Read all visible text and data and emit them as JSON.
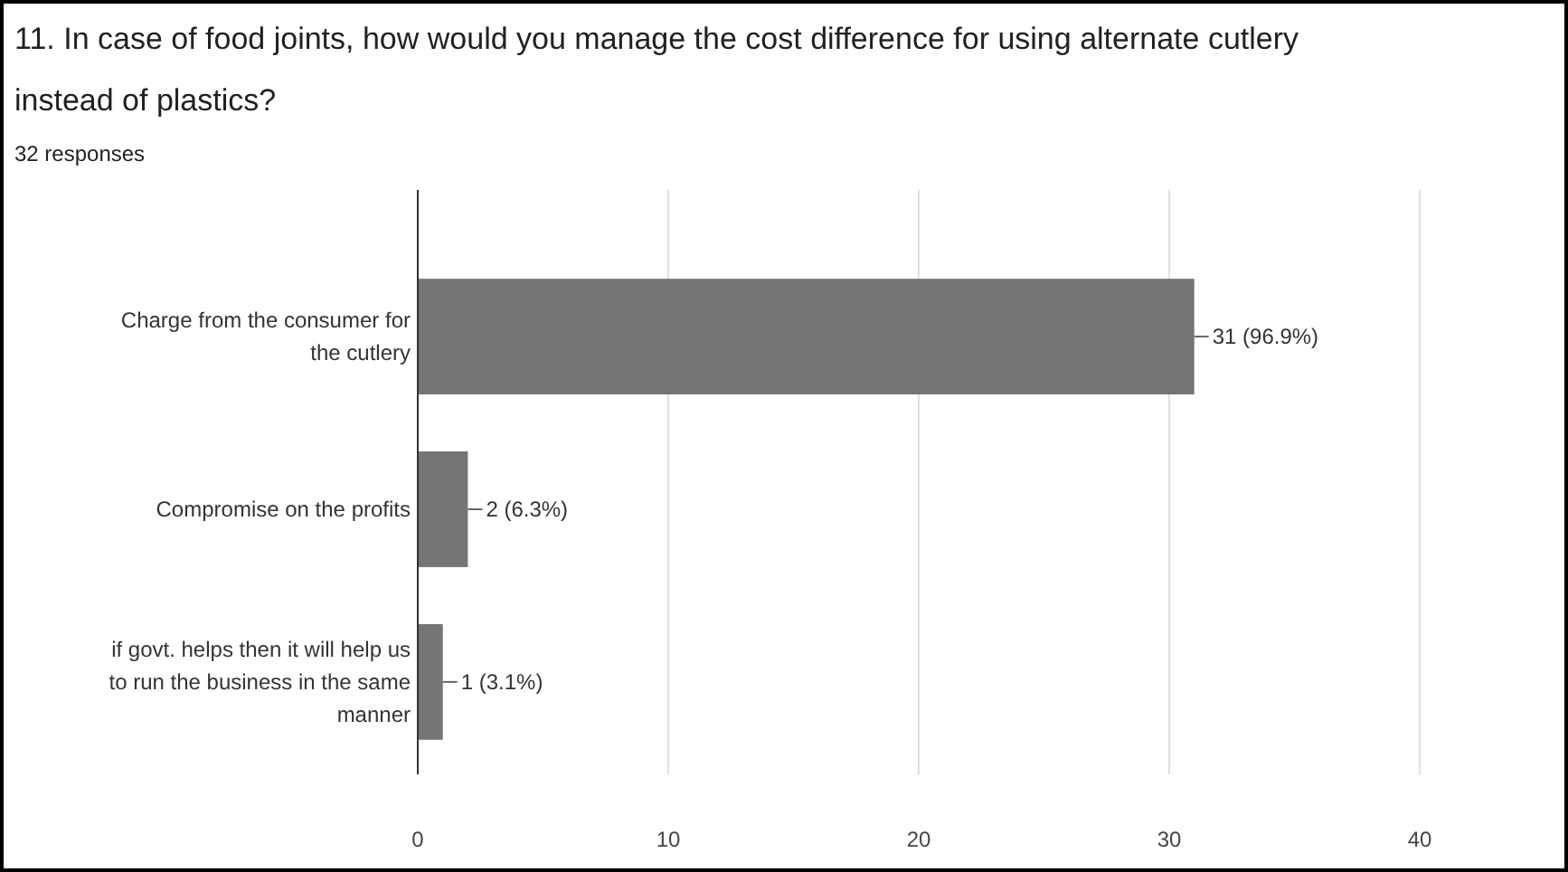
{
  "chart_data": {
    "type": "bar",
    "orientation": "horizontal",
    "title": "11. In case of food joints, how would you manage the cost difference for using alternate cutlery instead of plastics?",
    "subtitle": "32 responses",
    "categories": [
      "Charge from the consumer for the cutlery",
      "Compromise on the profits",
      "if govt. helps then it will help us to run the business in the same manner"
    ],
    "values": [
      31,
      2,
      1
    ],
    "value_labels": [
      "31 (96.9%)",
      "2 (6.3%)",
      "1 (3.1%)"
    ],
    "color": "#757575",
    "xlim": [
      0,
      40
    ],
    "xticks": [
      0,
      10,
      20,
      30,
      40
    ],
    "grid": "x"
  }
}
